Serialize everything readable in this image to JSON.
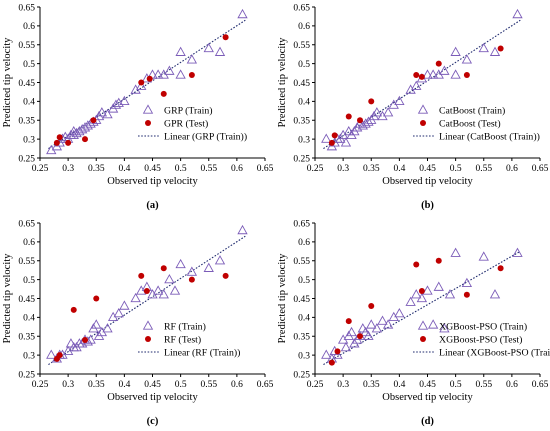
{
  "chart_data": [
    {
      "type": "scatter",
      "panel_label": "(a)",
      "xlabel": "Observed tip velocity",
      "ylabel": "Predicted tip velocity",
      "xlim": [
        0.25,
        0.65
      ],
      "ylim": [
        0.25,
        0.65
      ],
      "xticks": [
        "0.25",
        "0.3",
        "0.35",
        "0.4",
        "0.45",
        "0.5",
        "0.55",
        "0.6",
        "0.65"
      ],
      "yticks": [
        "0.25",
        "0.3",
        "0.35",
        "0.4",
        "0.45",
        "0.5",
        "0.55",
        "0.6",
        "0.65"
      ],
      "legend_position": "bottom-right",
      "series": [
        {
          "name": "GRP (Train)",
          "marker": "triangle-open",
          "color": "#7b5cb8",
          "points": [
            [
              0.27,
              0.27
            ],
            [
              0.28,
              0.28
            ],
            [
              0.285,
              0.29
            ],
            [
              0.29,
              0.3
            ],
            [
              0.295,
              0.305
            ],
            [
              0.3,
              0.3
            ],
            [
              0.305,
              0.31
            ],
            [
              0.31,
              0.31
            ],
            [
              0.31,
              0.32
            ],
            [
              0.315,
              0.315
            ],
            [
              0.32,
              0.32
            ],
            [
              0.325,
              0.325
            ],
            [
              0.33,
              0.33
            ],
            [
              0.335,
              0.335
            ],
            [
              0.34,
              0.34
            ],
            [
              0.345,
              0.345
            ],
            [
              0.35,
              0.35
            ],
            [
              0.355,
              0.36
            ],
            [
              0.36,
              0.37
            ],
            [
              0.37,
              0.365
            ],
            [
              0.38,
              0.38
            ],
            [
              0.385,
              0.39
            ],
            [
              0.39,
              0.395
            ],
            [
              0.4,
              0.4
            ],
            [
              0.42,
              0.43
            ],
            [
              0.43,
              0.44
            ],
            [
              0.44,
              0.46
            ],
            [
              0.45,
              0.47
            ],
            [
              0.46,
              0.47
            ],
            [
              0.47,
              0.47
            ],
            [
              0.48,
              0.48
            ],
            [
              0.5,
              0.47
            ],
            [
              0.5,
              0.53
            ],
            [
              0.52,
              0.51
            ],
            [
              0.55,
              0.54
            ],
            [
              0.57,
              0.53
            ],
            [
              0.61,
              0.63
            ]
          ]
        },
        {
          "name": "GPR (Test)",
          "marker": "circle-filled",
          "color": "#c00000",
          "points": [
            [
              0.28,
              0.29
            ],
            [
              0.285,
              0.305
            ],
            [
              0.3,
              0.29
            ],
            [
              0.33,
              0.3
            ],
            [
              0.345,
              0.35
            ],
            [
              0.43,
              0.45
            ],
            [
              0.445,
              0.46
            ],
            [
              0.47,
              0.42
            ],
            [
              0.52,
              0.47
            ],
            [
              0.58,
              0.57
            ]
          ]
        }
      ],
      "trendline": {
        "name": "Linear (GRP (Train))",
        "x": [
          0.265,
          0.615
        ],
        "y": [
          0.275,
          0.615
        ]
      }
    },
    {
      "type": "scatter",
      "panel_label": "(b)",
      "xlabel": "Observed tip velocity",
      "ylabel": "Predicted tip velocity",
      "xlim": [
        0.25,
        0.65
      ],
      "ylim": [
        0.25,
        0.65
      ],
      "xticks": [
        "0.25",
        "0.3",
        "0.35",
        "0.4",
        "0.45",
        "0.5",
        "0.55",
        "0.6",
        "0.65"
      ],
      "yticks": [
        "0.25",
        "0.3",
        "0.35",
        "0.4",
        "0.45",
        "0.5",
        "0.55",
        "0.6",
        "0.65"
      ],
      "legend_position": "bottom-right",
      "series": [
        {
          "name": "CatBoost (Train)",
          "marker": "triangle-open",
          "color": "#7b5cb8",
          "points": [
            [
              0.27,
              0.3
            ],
            [
              0.28,
              0.28
            ],
            [
              0.285,
              0.29
            ],
            [
              0.29,
              0.3
            ],
            [
              0.295,
              0.3
            ],
            [
              0.3,
              0.31
            ],
            [
              0.305,
              0.29
            ],
            [
              0.31,
              0.32
            ],
            [
              0.315,
              0.31
            ],
            [
              0.32,
              0.32
            ],
            [
              0.325,
              0.33
            ],
            [
              0.33,
              0.34
            ],
            [
              0.335,
              0.335
            ],
            [
              0.34,
              0.34
            ],
            [
              0.345,
              0.345
            ],
            [
              0.35,
              0.35
            ],
            [
              0.355,
              0.36
            ],
            [
              0.36,
              0.37
            ],
            [
              0.37,
              0.36
            ],
            [
              0.38,
              0.37
            ],
            [
              0.39,
              0.39
            ],
            [
              0.4,
              0.4
            ],
            [
              0.42,
              0.43
            ],
            [
              0.43,
              0.44
            ],
            [
              0.44,
              0.46
            ],
            [
              0.45,
              0.47
            ],
            [
              0.46,
              0.47
            ],
            [
              0.47,
              0.47
            ],
            [
              0.48,
              0.48
            ],
            [
              0.5,
              0.47
            ],
            [
              0.5,
              0.53
            ],
            [
              0.52,
              0.51
            ],
            [
              0.55,
              0.54
            ],
            [
              0.57,
              0.53
            ],
            [
              0.61,
              0.63
            ]
          ]
        },
        {
          "name": "CatBoost (Test)",
          "marker": "circle-filled",
          "color": "#c00000",
          "points": [
            [
              0.28,
              0.29
            ],
            [
              0.285,
              0.31
            ],
            [
              0.31,
              0.36
            ],
            [
              0.33,
              0.35
            ],
            [
              0.35,
              0.4
            ],
            [
              0.43,
              0.47
            ],
            [
              0.44,
              0.465
            ],
            [
              0.47,
              0.5
            ],
            [
              0.52,
              0.47
            ],
            [
              0.58,
              0.54
            ]
          ]
        }
      ],
      "trendline": {
        "name": "Linear (CatBoost (Train))",
        "x": [
          0.265,
          0.615
        ],
        "y": [
          0.275,
          0.615
        ]
      }
    },
    {
      "type": "scatter",
      "panel_label": "(c)",
      "xlabel": "Observed tip velocity",
      "ylabel": "Predicted tip velocity",
      "xlim": [
        0.25,
        0.65
      ],
      "ylim": [
        0.25,
        0.65
      ],
      "xticks": [
        "0.25",
        "0.3",
        "0.35",
        "0.4",
        "0.45",
        "0.5",
        "0.55",
        "0.6",
        "0.65"
      ],
      "yticks": [
        "0.25",
        "0.3",
        "0.35",
        "0.4",
        "0.45",
        "0.5",
        "0.55",
        "0.6",
        "0.65"
      ],
      "legend_position": "bottom-right",
      "series": [
        {
          "name": "RF (Train)",
          "marker": "triangle-open",
          "color": "#7b5cb8",
          "points": [
            [
              0.27,
              0.3
            ],
            [
              0.28,
              0.29
            ],
            [
              0.285,
              0.3
            ],
            [
              0.29,
              0.3
            ],
            [
              0.3,
              0.31
            ],
            [
              0.305,
              0.33
            ],
            [
              0.31,
              0.32
            ],
            [
              0.315,
              0.32
            ],
            [
              0.32,
              0.33
            ],
            [
              0.325,
              0.33
            ],
            [
              0.33,
              0.34
            ],
            [
              0.335,
              0.335
            ],
            [
              0.34,
              0.34
            ],
            [
              0.345,
              0.37
            ],
            [
              0.35,
              0.38
            ],
            [
              0.355,
              0.35
            ],
            [
              0.36,
              0.36
            ],
            [
              0.37,
              0.37
            ],
            [
              0.38,
              0.4
            ],
            [
              0.39,
              0.41
            ],
            [
              0.4,
              0.43
            ],
            [
              0.42,
              0.45
            ],
            [
              0.43,
              0.47
            ],
            [
              0.44,
              0.48
            ],
            [
              0.45,
              0.46
            ],
            [
              0.46,
              0.47
            ],
            [
              0.47,
              0.46
            ],
            [
              0.48,
              0.5
            ],
            [
              0.49,
              0.47
            ],
            [
              0.5,
              0.54
            ],
            [
              0.52,
              0.52
            ],
            [
              0.55,
              0.53
            ],
            [
              0.57,
              0.55
            ],
            [
              0.61,
              0.63
            ]
          ]
        },
        {
          "name": "RF (Test)",
          "marker": "circle-filled",
          "color": "#c00000",
          "points": [
            [
              0.28,
              0.29
            ],
            [
              0.285,
              0.3
            ],
            [
              0.31,
              0.42
            ],
            [
              0.33,
              0.34
            ],
            [
              0.35,
              0.45
            ],
            [
              0.43,
              0.51
            ],
            [
              0.44,
              0.47
            ],
            [
              0.47,
              0.53
            ],
            [
              0.52,
              0.5
            ],
            [
              0.58,
              0.51
            ]
          ]
        }
      ],
      "trendline": {
        "name": "Linear (RF (Train))",
        "x": [
          0.265,
          0.615
        ],
        "y": [
          0.275,
          0.615
        ]
      }
    },
    {
      "type": "scatter",
      "panel_label": "(d)",
      "xlabel": "Observed tip velocity",
      "ylabel": "Predicted tip velocity",
      "xlim": [
        0.25,
        0.65
      ],
      "ylim": [
        0.25,
        0.65
      ],
      "xticks": [
        "0.25",
        "0.3",
        "0.35",
        "0.4",
        "0.45",
        "0.5",
        "0.55",
        "0.6",
        "0.65"
      ],
      "yticks": [
        "0.25",
        "0.3",
        "0.35",
        "0.4",
        "0.45",
        "0.5",
        "0.55",
        "0.6",
        "0.65"
      ],
      "legend_position": "bottom-right",
      "series": [
        {
          "name": "XGBoost-PSO (Train)",
          "marker": "triangle-open",
          "color": "#7b5cb8",
          "points": [
            [
              0.27,
              0.3
            ],
            [
              0.28,
              0.29
            ],
            [
              0.285,
              0.31
            ],
            [
              0.29,
              0.3
            ],
            [
              0.3,
              0.34
            ],
            [
              0.305,
              0.32
            ],
            [
              0.31,
              0.35
            ],
            [
              0.315,
              0.36
            ],
            [
              0.32,
              0.33
            ],
            [
              0.325,
              0.34
            ],
            [
              0.33,
              0.35
            ],
            [
              0.335,
              0.37
            ],
            [
              0.34,
              0.36
            ],
            [
              0.345,
              0.35
            ],
            [
              0.35,
              0.38
            ],
            [
              0.36,
              0.37
            ],
            [
              0.37,
              0.39
            ],
            [
              0.38,
              0.38
            ],
            [
              0.39,
              0.4
            ],
            [
              0.4,
              0.41
            ],
            [
              0.42,
              0.44
            ],
            [
              0.43,
              0.46
            ],
            [
              0.44,
              0.45
            ],
            [
              0.45,
              0.47
            ],
            [
              0.46,
              0.38
            ],
            [
              0.47,
              0.48
            ],
            [
              0.48,
              0.37
            ],
            [
              0.49,
              0.46
            ],
            [
              0.5,
              0.57
            ],
            [
              0.52,
              0.49
            ],
            [
              0.55,
              0.56
            ],
            [
              0.57,
              0.46
            ],
            [
              0.61,
              0.57
            ]
          ]
        },
        {
          "name": "XGBoost-PSO (Test)",
          "marker": "circle-filled",
          "color": "#c00000",
          "points": [
            [
              0.28,
              0.28
            ],
            [
              0.29,
              0.31
            ],
            [
              0.31,
              0.39
            ],
            [
              0.33,
              0.35
            ],
            [
              0.35,
              0.43
            ],
            [
              0.43,
              0.54
            ],
            [
              0.44,
              0.47
            ],
            [
              0.47,
              0.55
            ],
            [
              0.52,
              0.46
            ],
            [
              0.58,
              0.53
            ]
          ]
        }
      ],
      "trendline": {
        "name": "Linear (XGBoost-PSO (Train))",
        "x": [
          0.265,
          0.615
        ],
        "y": [
          0.275,
          0.575
        ]
      }
    }
  ]
}
